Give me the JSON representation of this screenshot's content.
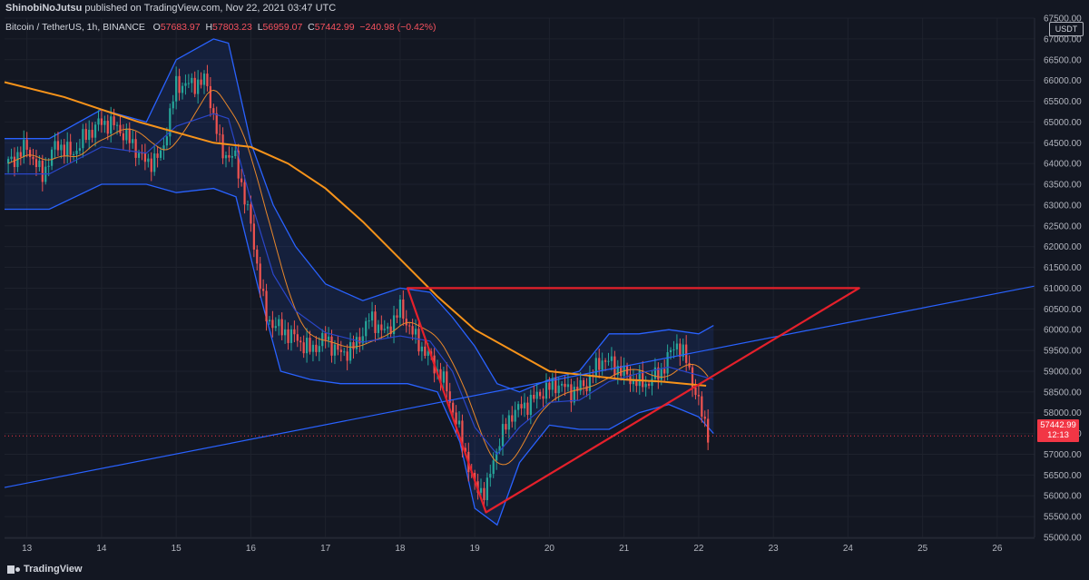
{
  "header": {
    "publisher": "ShinobiNoJutsu",
    "published_text": "published on TradingView.com, Nov 22, 2021 03:47 UTC"
  },
  "legend": {
    "symbol": "Bitcoin / TetherUS, 1h, BINANCE",
    "open_key": "O",
    "open": "57683.97",
    "high_key": "H",
    "high": "57803.23",
    "low_key": "L",
    "low": "56959.07",
    "close_key": "C",
    "close": "57442.99",
    "change": "−240.98 (−0.42%)"
  },
  "unit_button": "USDT",
  "last_price": {
    "value": "57442.99",
    "countdown": "12:13"
  },
  "footer": {
    "brand": "TradingView"
  },
  "colors": {
    "background": "#131722",
    "grid": "#1e222d",
    "up": "#26a69a",
    "down": "#ef5350",
    "ma_long": "#f7931a",
    "bollinger": "#2962ff",
    "drawing": "#e5202b",
    "trendline": "#2962ff"
  },
  "chart_data": {
    "type": "candlestick",
    "interval": "1h",
    "ylim": [
      55000,
      67500
    ],
    "y_ticks": [
      55000,
      55500,
      56000,
      56500,
      57000,
      57500,
      58000,
      58500,
      59000,
      59500,
      60000,
      60500,
      61000,
      61500,
      62000,
      62500,
      63000,
      63500,
      64000,
      64500,
      65000,
      65500,
      66000,
      66500,
      67000,
      67500
    ],
    "y_tick_labels": [
      "55000.00",
      "55500.00",
      "56000.00",
      "56500.00",
      "57000.00",
      "57500.00",
      "58000.00",
      "58500.00",
      "59000.00",
      "59500.00",
      "60000.00",
      "60500.00",
      "61000.00",
      "61500.00",
      "62000.00",
      "62500.00",
      "63000.00",
      "63500.00",
      "64000.00",
      "64500.00",
      "65000.00",
      "65500.00",
      "66000.00",
      "66500.00",
      "67000.00",
      "67500.00"
    ],
    "x_day_range": [
      12.7,
      26.5
    ],
    "x_ticks": [
      13,
      14,
      15,
      16,
      17,
      18,
      19,
      20,
      21,
      22,
      23,
      24,
      25,
      26
    ],
    "x_tick_labels": [
      "13",
      "14",
      "15",
      "16",
      "17",
      "18",
      "19",
      "20",
      "21",
      "22",
      "23",
      "24",
      "25",
      "26"
    ],
    "price_path": [
      [
        12.75,
        64000
      ],
      [
        13.0,
        64400
      ],
      [
        13.2,
        63700
      ],
      [
        13.4,
        64500
      ],
      [
        13.6,
        64200
      ],
      [
        13.8,
        64700
      ],
      [
        14.0,
        65000
      ],
      [
        14.2,
        64900
      ],
      [
        14.4,
        64500
      ],
      [
        14.6,
        64000
      ],
      [
        14.8,
        64200
      ],
      [
        15.0,
        65900
      ],
      [
        15.2,
        65900
      ],
      [
        15.4,
        66000
      ],
      [
        15.6,
        64300
      ],
      [
        15.8,
        64100
      ],
      [
        16.0,
        62500
      ],
      [
        16.2,
        60300
      ],
      [
        16.4,
        60000
      ],
      [
        16.6,
        59800
      ],
      [
        16.8,
        59500
      ],
      [
        17.0,
        59800
      ],
      [
        17.2,
        59400
      ],
      [
        17.4,
        59600
      ],
      [
        17.6,
        60300
      ],
      [
        17.8,
        59900
      ],
      [
        18.0,
        60500
      ],
      [
        18.2,
        59800
      ],
      [
        18.4,
        59300
      ],
      [
        18.6,
        58700
      ],
      [
        18.8,
        57500
      ],
      [
        19.0,
        56200
      ],
      [
        19.15,
        56100
      ],
      [
        19.3,
        57200
      ],
      [
        19.5,
        58000
      ],
      [
        19.7,
        58200
      ],
      [
        19.9,
        58500
      ],
      [
        20.1,
        58700
      ],
      [
        20.3,
        58500
      ],
      [
        20.5,
        58700
      ],
      [
        20.7,
        59300
      ],
      [
        20.9,
        59100
      ],
      [
        21.1,
        58800
      ],
      [
        21.3,
        58700
      ],
      [
        21.5,
        59000
      ],
      [
        21.7,
        59700
      ],
      [
        21.85,
        59200
      ],
      [
        22.0,
        58200
      ],
      [
        22.15,
        57400
      ]
    ],
    "ma_long": [
      [
        12.7,
        65960
      ],
      [
        13.5,
        65600
      ],
      [
        14.5,
        65000
      ],
      [
        15.5,
        64500
      ],
      [
        16.0,
        64400
      ],
      [
        16.5,
        64000
      ],
      [
        17.0,
        63400
      ],
      [
        17.5,
        62600
      ],
      [
        18.0,
        61700
      ],
      [
        18.5,
        60800
      ],
      [
        19.0,
        60000
      ],
      [
        19.5,
        59500
      ],
      [
        20.0,
        59000
      ],
      [
        20.5,
        58900
      ],
      [
        21.0,
        58800
      ],
      [
        21.5,
        58750
      ],
      [
        22.1,
        58650
      ]
    ],
    "bollinger_upper": [
      [
        12.7,
        64600
      ],
      [
        13.3,
        64600
      ],
      [
        14.0,
        65300
      ],
      [
        14.6,
        65000
      ],
      [
        15.0,
        66500
      ],
      [
        15.5,
        67000
      ],
      [
        15.7,
        66900
      ],
      [
        16.0,
        64500
      ],
      [
        16.3,
        63000
      ],
      [
        16.6,
        62000
      ],
      [
        17.0,
        61100
      ],
      [
        17.5,
        60700
      ],
      [
        18.0,
        61000
      ],
      [
        18.4,
        60900
      ],
      [
        18.7,
        60300
      ],
      [
        19.0,
        59600
      ],
      [
        19.3,
        58700
      ],
      [
        19.6,
        58500
      ],
      [
        20.0,
        58800
      ],
      [
        20.4,
        59000
      ],
      [
        20.8,
        59900
      ],
      [
        21.2,
        59900
      ],
      [
        21.6,
        60000
      ],
      [
        22.0,
        59900
      ],
      [
        22.2,
        60100
      ]
    ],
    "bollinger_lower": [
      [
        12.7,
        62900
      ],
      [
        13.3,
        62900
      ],
      [
        14.0,
        63500
      ],
      [
        14.6,
        63500
      ],
      [
        15.0,
        63300
      ],
      [
        15.5,
        63400
      ],
      [
        15.8,
        63200
      ],
      [
        16.1,
        61000
      ],
      [
        16.4,
        59000
      ],
      [
        16.8,
        58800
      ],
      [
        17.2,
        58700
      ],
      [
        17.7,
        58700
      ],
      [
        18.1,
        58700
      ],
      [
        18.5,
        58500
      ],
      [
        18.8,
        57300
      ],
      [
        19.0,
        55700
      ],
      [
        19.3,
        55300
      ],
      [
        19.6,
        56800
      ],
      [
        20.0,
        57700
      ],
      [
        20.4,
        57600
      ],
      [
        20.8,
        57600
      ],
      [
        21.2,
        58000
      ],
      [
        21.6,
        58200
      ],
      [
        22.0,
        57900
      ],
      [
        22.2,
        57500
      ]
    ],
    "annotations": {
      "resistance_line": {
        "from": [
          18.1,
          61000
        ],
        "to": [
          24.15,
          61000
        ]
      },
      "triangle": [
        [
          19.15,
          55600
        ],
        [
          24.15,
          61000
        ],
        [
          18.1,
          61000
        ]
      ],
      "trend_line": {
        "from": [
          12.7,
          56200
        ],
        "to": [
          26.5,
          61050
        ]
      },
      "last_price_line": 57442.99
    }
  }
}
